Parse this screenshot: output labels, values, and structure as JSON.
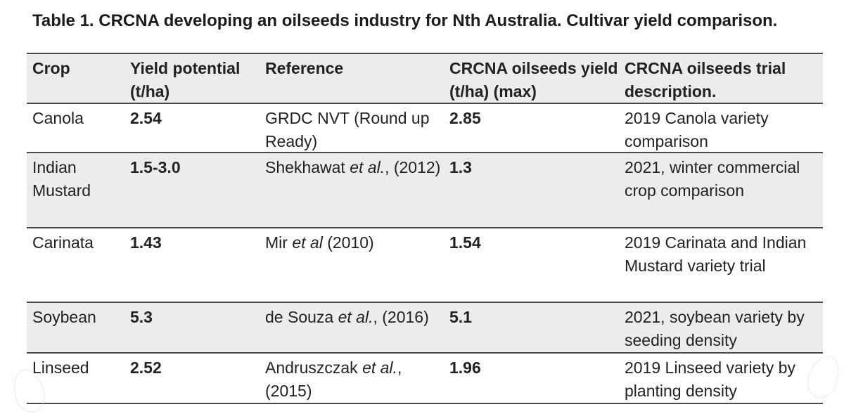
{
  "caption": "Table 1. CRCNA developing an oilseeds industry for Nth Australia. Cultivar yield comparison.",
  "headers": {
    "crop": "Crop",
    "yield_potential": "Yield potential (t/ha)",
    "reference": "Reference",
    "crcna_yield": "CRCNA oilseeds yield (t/ha) (max)",
    "crcna_description": "CRCNA oilseeds trial description."
  },
  "rows": [
    {
      "crop": "Canola",
      "yield_potential": "2.54",
      "reference_pre": "GRDC NVT (Round up Ready)",
      "reference_em": "",
      "reference_post": "",
      "crcna_yield": "2.85",
      "description": "2019 Canola variety comparison"
    },
    {
      "crop": "Indian Mustard",
      "yield_potential": "1.5-3.0",
      "reference_pre": "Shekhawat ",
      "reference_em": "et al.",
      "reference_post": ", (2012)",
      "crcna_yield": "1.3",
      "description": "2021, winter commercial crop comparison"
    },
    {
      "crop": "Carinata",
      "yield_potential": "1.43",
      "reference_pre": "Mir ",
      "reference_em": "et al",
      "reference_post": " (2010)",
      "crcna_yield": "1.54",
      "description": "2019 Carinata and Indian Mustard variety trial"
    },
    {
      "crop": "Soybean",
      "yield_potential": "5.3",
      "reference_pre": "de Souza ",
      "reference_em": "et al.",
      "reference_post": ", (2016)",
      "crcna_yield": "5.1",
      "description": "2021, soybean variety by seeding density"
    },
    {
      "crop": "Linseed",
      "yield_potential": "2.52",
      "reference_pre": "Andruszczak ",
      "reference_em": "et al.",
      "reference_post": ", (2015)",
      "crcna_yield": "1.96",
      "description": "2019 Linseed variety by planting density"
    }
  ]
}
